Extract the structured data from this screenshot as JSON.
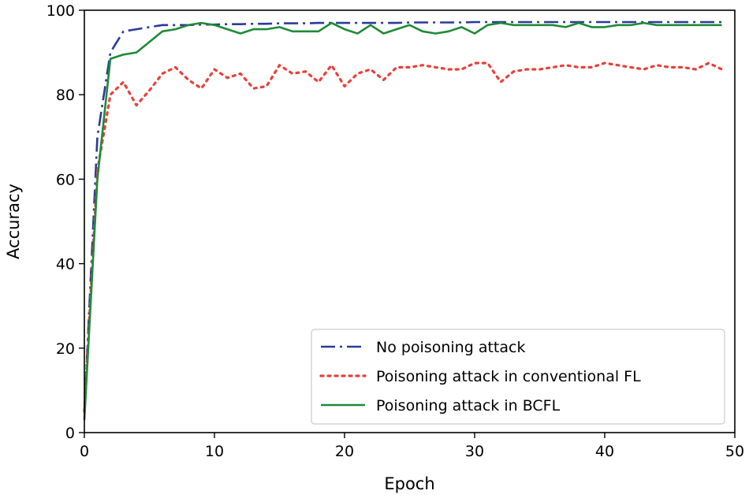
{
  "chart_data": {
    "type": "line",
    "title": "",
    "xlabel": "Epoch",
    "ylabel": "Accuracy",
    "xlim": [
      0,
      50
    ],
    "ylim": [
      0,
      100
    ],
    "xticks": [
      0,
      10,
      20,
      30,
      40,
      50
    ],
    "yticks": [
      0,
      20,
      40,
      60,
      80,
      100
    ],
    "grid": false,
    "legend_position": "bottom-right",
    "series": [
      {
        "name": "No poisoning attack",
        "color": "#2b3a9a",
        "style": "dashdot",
        "x": [
          0,
          1,
          2,
          3,
          4,
          5,
          6,
          7,
          8,
          9,
          10,
          11,
          12,
          13,
          14,
          15,
          16,
          17,
          18,
          19,
          20,
          21,
          22,
          23,
          24,
          25,
          26,
          27,
          28,
          29,
          30,
          31,
          32,
          33,
          34,
          35,
          36,
          37,
          38,
          39,
          40,
          41,
          42,
          43,
          44,
          45,
          46,
          47,
          48,
          49
        ],
        "values": [
          5,
          70,
          90,
          95,
          95.5,
          96,
          96.5,
          96.5,
          96.5,
          96.6,
          96.6,
          96.7,
          96.7,
          96.8,
          96.8,
          96.9,
          96.9,
          96.9,
          97,
          97,
          97,
          97,
          97,
          97,
          97,
          97.1,
          97.1,
          97.1,
          97.1,
          97.1,
          97.2,
          97.2,
          97.2,
          97.2,
          97.2,
          97.2,
          97.2,
          97.2,
          97.2,
          97.2,
          97.2,
          97.2,
          97.2,
          97.2,
          97.2,
          97.2,
          97.2,
          97.2,
          97.2,
          97.2
        ]
      },
      {
        "name": "Poisoning attack in conventional FL",
        "color": "#e8403a",
        "style": "dotted",
        "x": [
          0,
          1,
          2,
          3,
          4,
          5,
          6,
          7,
          8,
          9,
          10,
          11,
          12,
          13,
          14,
          15,
          16,
          17,
          18,
          19,
          20,
          21,
          22,
          23,
          24,
          25,
          26,
          27,
          28,
          29,
          30,
          31,
          32,
          33,
          34,
          35,
          36,
          37,
          38,
          39,
          40,
          41,
          42,
          43,
          44,
          45,
          46,
          47,
          48,
          49
        ],
        "values": [
          5,
          62,
          80,
          83,
          77.5,
          81,
          85,
          86.5,
          83.5,
          81.5,
          86,
          84,
          85,
          81.5,
          82,
          87,
          85,
          85.5,
          83,
          87,
          82,
          85,
          86,
          83.5,
          86.5,
          86.5,
          87,
          86.5,
          86,
          86,
          87.5,
          87.5,
          83,
          85.5,
          86,
          86,
          86.5,
          87,
          86.5,
          86.5,
          87.5,
          87,
          86.5,
          86,
          87,
          86.5,
          86.5,
          86,
          87.5,
          86
        ]
      },
      {
        "name": "Poisoning attack in BCFL",
        "color": "#1f8a37",
        "style": "solid",
        "x": [
          0,
          1,
          2,
          3,
          4,
          5,
          6,
          7,
          8,
          9,
          10,
          11,
          12,
          13,
          14,
          15,
          16,
          17,
          18,
          19,
          20,
          21,
          22,
          23,
          24,
          25,
          26,
          27,
          28,
          29,
          30,
          31,
          32,
          33,
          34,
          35,
          36,
          37,
          38,
          39,
          40,
          41,
          42,
          43,
          44,
          45,
          46,
          47,
          48,
          49
        ],
        "values": [
          3,
          60,
          88.5,
          89.5,
          90,
          92.5,
          95,
          95.5,
          96.5,
          97,
          96.5,
          95.5,
          94.5,
          95.5,
          95.5,
          96,
          95,
          95,
          95,
          97,
          95.5,
          94.5,
          96.5,
          94.5,
          95.5,
          96.5,
          95,
          94.5,
          95,
          96,
          94.5,
          96.5,
          97,
          96.5,
          96.5,
          96.5,
          96.5,
          96,
          97,
          96,
          96,
          96.5,
          96.5,
          97,
          96.5,
          96.5,
          96.5,
          96.5,
          96.5,
          96.5
        ]
      }
    ]
  }
}
